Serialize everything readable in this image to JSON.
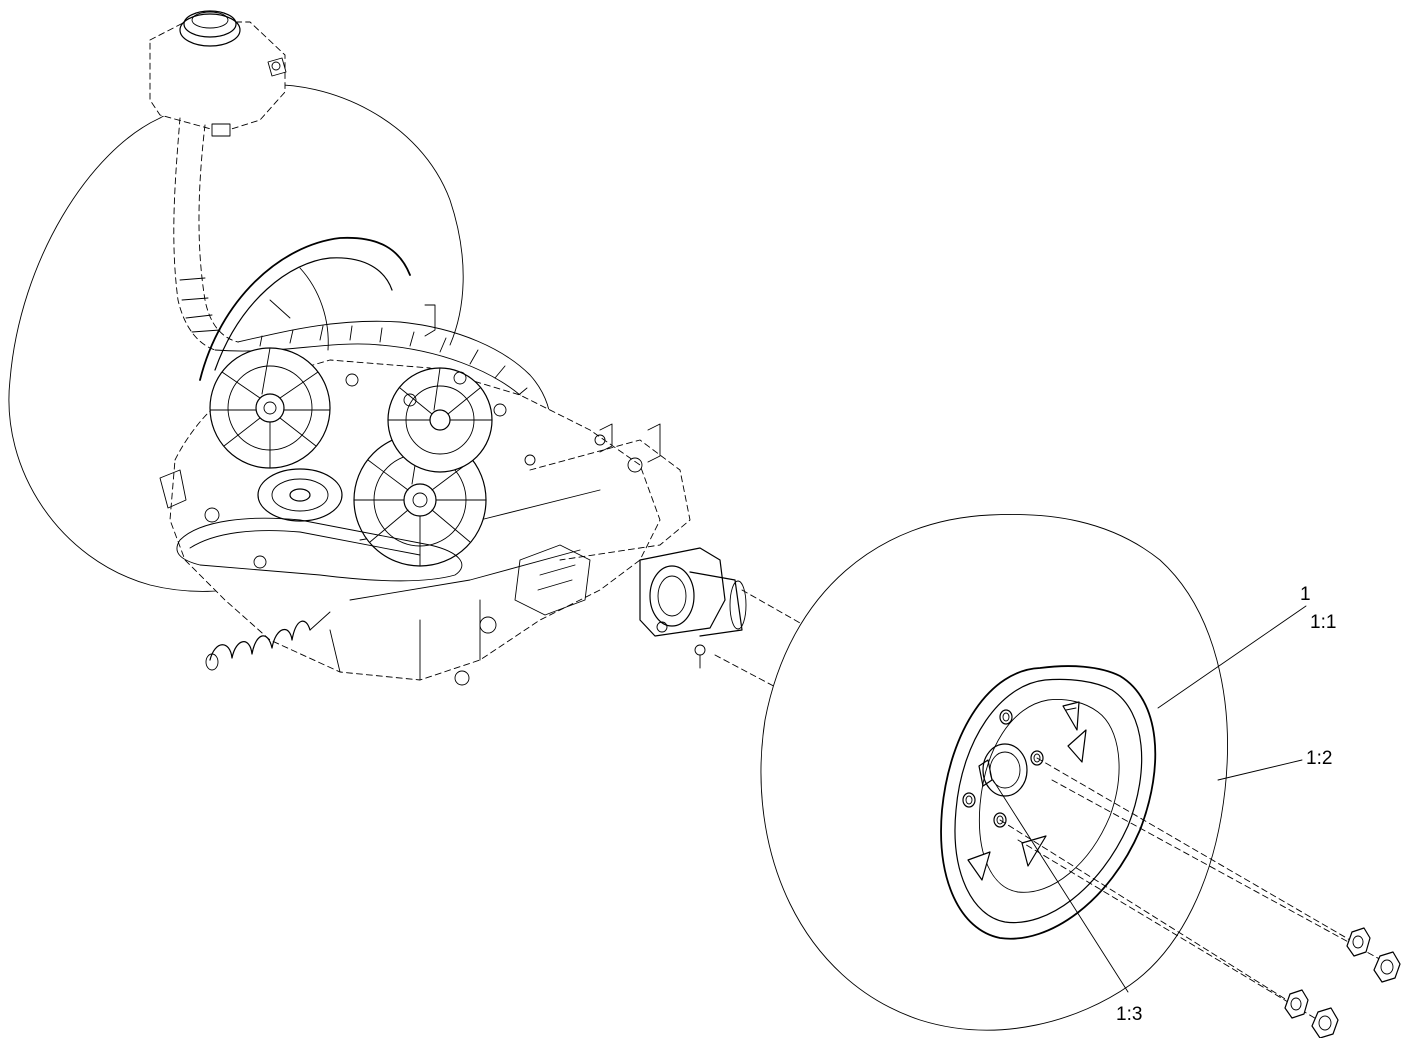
{
  "callouts": [
    {
      "id": "c1",
      "label": "1"
    },
    {
      "id": "c11",
      "label": "1:1"
    },
    {
      "id": "c12",
      "label": "1:2"
    },
    {
      "id": "c13",
      "label": "1:3"
    }
  ]
}
